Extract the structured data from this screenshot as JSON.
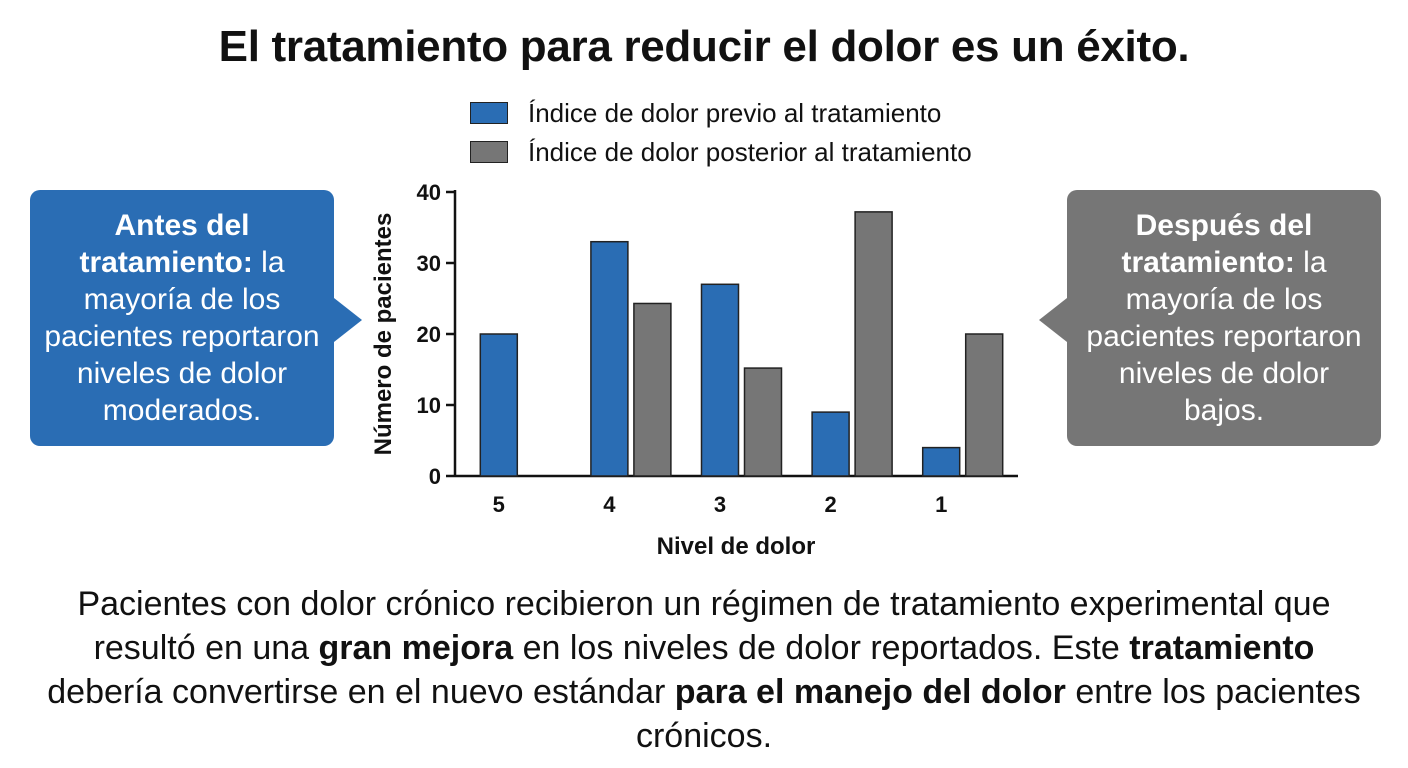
{
  "title": "El tratamiento para reducir el dolor es un éxito.",
  "colors": {
    "pre": "#2a6db4",
    "post": "#767676"
  },
  "callouts": {
    "left": {
      "bold": "Antes del tratamiento:",
      "rest": " la mayoría de los pacientes reportaron niveles de dolor moderados."
    },
    "right": {
      "bold": "Después del tratamiento:",
      "rest": " la mayoría de los pacientes reportaron niveles de dolor bajos."
    }
  },
  "caption": {
    "p1": "Pacientes con dolor crónico recibieron un régimen de tratamiento experimental que resultó en una ",
    "b1": "gran mejora",
    "p2": " en los niveles de dolor reportados. Este ",
    "b2": "tratamiento",
    "p3": " debería convertirse en el nuevo estándar ",
    "b3": "para el manejo del dolor",
    "p4": " entre los pacientes crónicos."
  },
  "chart_data": {
    "type": "bar",
    "xlabel": "Nivel de dolor",
    "ylabel": "Número de pacientes",
    "categories": [
      "5",
      "4",
      "3",
      "2",
      "1"
    ],
    "ylim": [
      0,
      40
    ],
    "yticks": [
      0,
      10,
      20,
      30,
      40
    ],
    "series": [
      {
        "name": "Índice de dolor previo al tratamiento",
        "values": [
          20,
          33,
          27,
          9,
          4
        ]
      },
      {
        "name": "Índice de dolor posterior al tratamiento",
        "values": [
          0,
          24.3,
          15.2,
          37.2,
          20
        ]
      }
    ],
    "grid": false,
    "legend": "top"
  }
}
